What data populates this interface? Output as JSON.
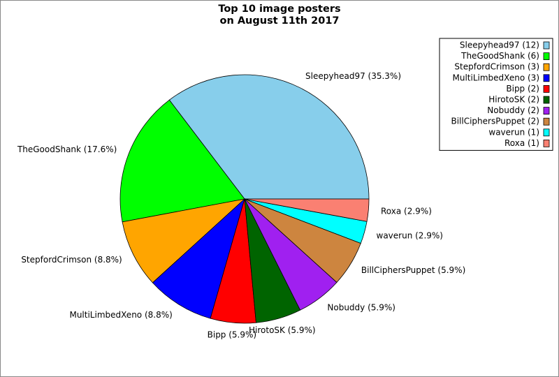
{
  "chart_data": {
    "type": "pie",
    "title": [
      "Top 10 image posters",
      "on August 11th 2017"
    ],
    "categories": [
      "Sleepyhead97 (12)",
      "TheGoodShank (6)",
      "StepfordCrimson (3)",
      "MultiLimbedXeno (3)",
      "Bipp (2)",
      "HirotoSK (2)",
      "Nobuddy (2)",
      "BillCiphersPuppet (2)",
      "waverun (1)",
      "Roxa (1)"
    ],
    "values": [
      35.3,
      17.6,
      8.8,
      8.8,
      5.9,
      5.9,
      5.9,
      5.9,
      2.9,
      2.9
    ],
    "value_labels": [
      "Sleepyhead97 (35.3%)",
      "TheGoodShank (17.6%)",
      "StepfordCrimson (8.8%)",
      "MultiLimbedXeno (8.8%)",
      "Bipp (5.9%)",
      "HirotoSK (5.9%)",
      "Nobuddy (5.9%)",
      "BillCiphersPuppet (5.9%)",
      "waverun (2.9%)",
      "Roxa (2.9%)"
    ],
    "colors": [
      "#87ceeb",
      "#00ff00",
      "#ffa500",
      "#0000ff",
      "#ff0000",
      "#006400",
      "#a020f0",
      "#cd853f",
      "#00ffff",
      "#fa8072"
    ],
    "legend": "upper right"
  }
}
